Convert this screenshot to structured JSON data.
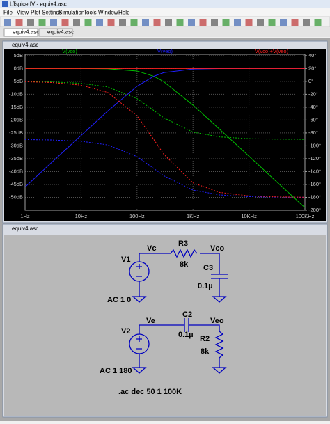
{
  "window": {
    "title": "LTspice IV - equiv4.asc"
  },
  "menu": [
    "File",
    "View",
    "Plot Settings",
    "Simulation",
    "Tools",
    "Window",
    "Help"
  ],
  "tabs": [
    "equiv4.asc",
    "equiv4.asc"
  ],
  "plot_window": {
    "title": "equiv4.asc",
    "chart_data": {
      "type": "line",
      "xscale": "log",
      "grid": true,
      "x": [
        1,
        3,
        10,
        30,
        100,
        200,
        300,
        1000,
        3000,
        10000,
        30000,
        100000
      ],
      "xlim": [
        1,
        100000
      ],
      "xticks": [
        {
          "value": 1,
          "label": "1Hz"
        },
        {
          "value": 10,
          "label": "10Hz"
        },
        {
          "value": 100,
          "label": "100Hz"
        },
        {
          "value": 1000,
          "label": "1KHz"
        },
        {
          "value": 10000,
          "label": "10KHz"
        },
        {
          "value": 100000,
          "label": "100KHz"
        }
      ],
      "ylim": [
        5.5,
        -55
      ],
      "yticks": [
        {
          "value": 5,
          "label": "5dB"
        },
        {
          "value": 0,
          "label": "0dB"
        },
        {
          "value": -5,
          "label": "-5dB"
        },
        {
          "value": -10,
          "label": "-10dB"
        },
        {
          "value": -15,
          "label": "-15dB"
        },
        {
          "value": -20,
          "label": "-20dB"
        },
        {
          "value": -25,
          "label": "-25dB"
        },
        {
          "value": -30,
          "label": "-30dB"
        },
        {
          "value": -35,
          "label": "-35dB"
        },
        {
          "value": -40,
          "label": "-40dB"
        },
        {
          "value": -45,
          "label": "-45dB"
        },
        {
          "value": -50,
          "label": "-50dB"
        }
      ],
      "y2lim": [
        42,
        -200
      ],
      "y2ticks": [
        {
          "value": 40,
          "label": "40°"
        },
        {
          "value": 20,
          "label": "20°"
        },
        {
          "value": 0,
          "label": "0°"
        },
        {
          "value": -20,
          "label": "-20°"
        },
        {
          "value": -40,
          "label": "-40°"
        },
        {
          "value": -60,
          "label": "-60°"
        },
        {
          "value": -80,
          "label": "-80°"
        },
        {
          "value": -100,
          "label": "-100°"
        },
        {
          "value": -120,
          "label": "-120°"
        },
        {
          "value": -140,
          "label": "-140°"
        },
        {
          "value": -160,
          "label": "-160°"
        },
        {
          "value": -180,
          "label": "-180°"
        },
        {
          "value": -200,
          "label": "-200°"
        }
      ],
      "series": [
        {
          "name": "V(vco)",
          "color": "#00c000",
          "values": [
            0,
            0,
            -0.01,
            -0.1,
            -0.97,
            -3.03,
            -5.1,
            -14.2,
            -23.6,
            -34.0,
            -43.6,
            -54.0
          ],
          "phase": [
            -0.3,
            -0.9,
            -2.9,
            -8.6,
            -26.7,
            -45.2,
            -56.4,
            -78.7,
            -86.2,
            -88.9,
            -89.6,
            -89.9
          ]
        },
        {
          "name": "V(veo)",
          "color": "#2020ff",
          "values": [
            -46.0,
            -36.4,
            -26.0,
            -16.5,
            -6.9,
            -3.0,
            -1.6,
            -0.2,
            -0.02,
            0,
            0,
            0
          ],
          "phase": [
            -90.3,
            -90.9,
            -92.9,
            -98.6,
            -116.7,
            -135.2,
            -146.4,
            -168.7,
            -176.2,
            -178.9,
            -179.6,
            -179.9
          ]
        },
        {
          "name": "V(vco)+V(veo)",
          "color": "#ff2020",
          "values": [
            0,
            0,
            0,
            0,
            0,
            0,
            0,
            0,
            0,
            0,
            0,
            0
          ],
          "phase": [
            -0.6,
            -1.7,
            -5.8,
            -17.1,
            -53.4,
            -90.3,
            -112.9,
            -157.5,
            -172.4,
            -177.7,
            -179.2,
            -179.8
          ]
        }
      ]
    }
  },
  "schematic_window": {
    "title": "equiv4.asc",
    "components": [
      {
        "ref": "V1",
        "value": "AC 1 0"
      },
      {
        "ref": "R3",
        "value": "8k"
      },
      {
        "ref": "C3",
        "value": "0.1µ"
      },
      {
        "ref": "V2",
        "value": "AC 1 180"
      },
      {
        "ref": "C2",
        "value": "0.1µ"
      },
      {
        "ref": "R2",
        "value": "8k"
      }
    ],
    "nets": [
      "Vc",
      "Vco",
      "Ve",
      "Veo"
    ],
    "directive": ".ac dec 50 1 100K"
  }
}
